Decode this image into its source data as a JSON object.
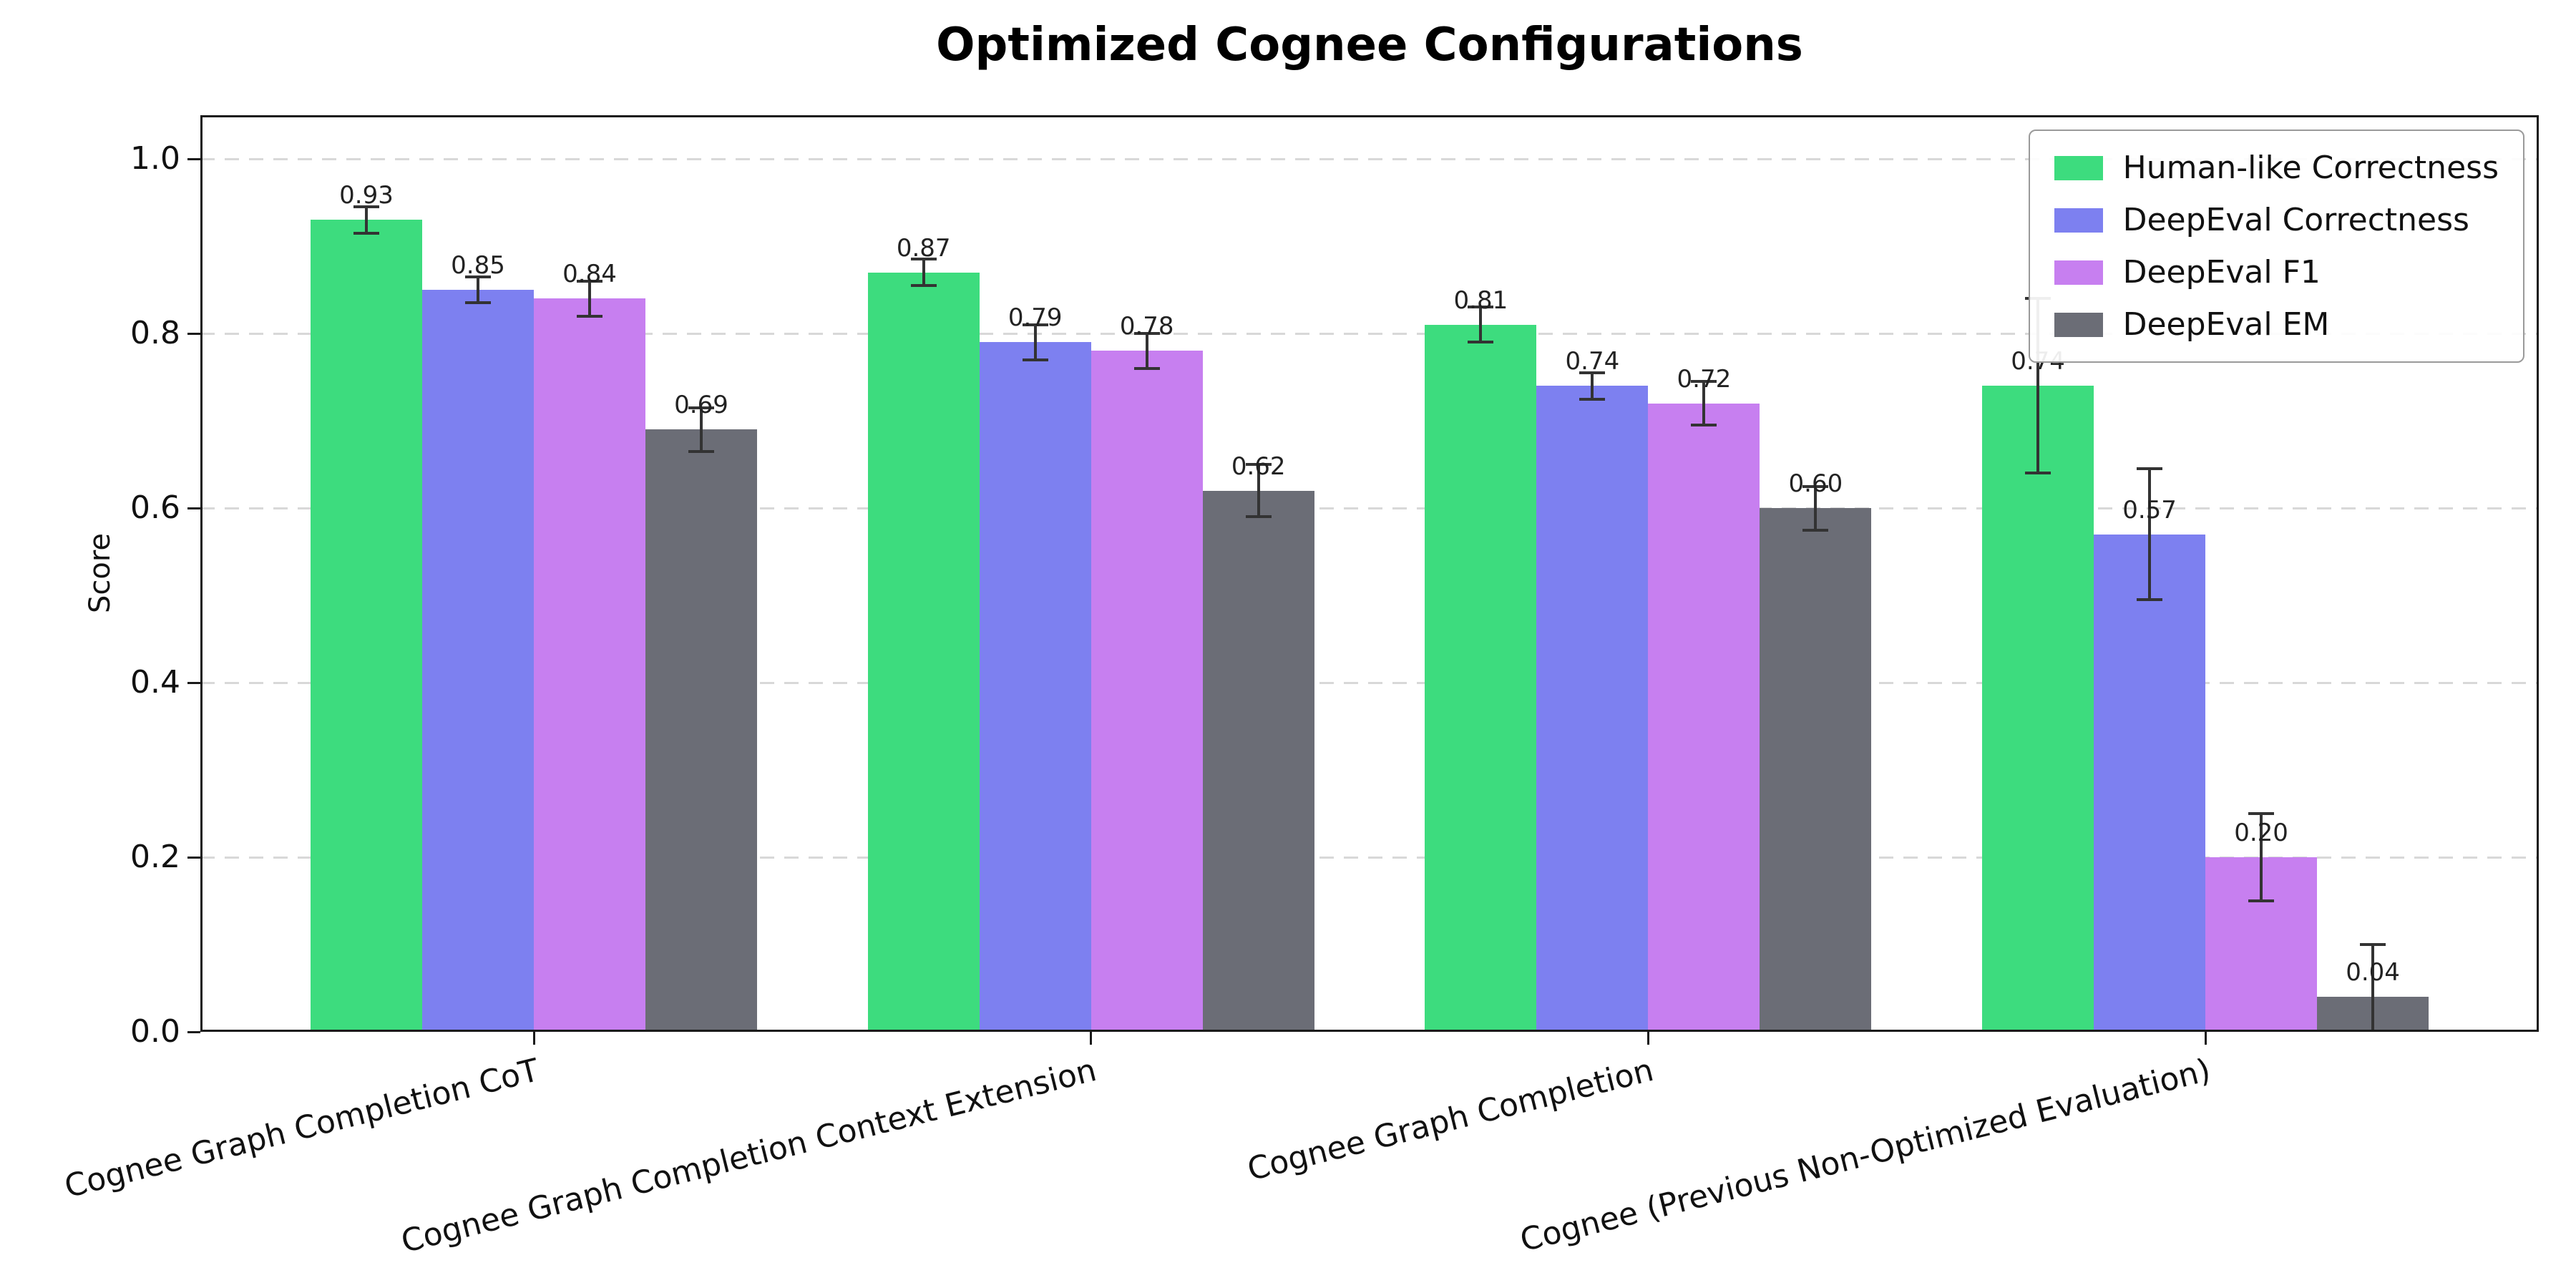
{
  "chart_data": {
    "type": "bar",
    "title": "Optimized Cognee Configurations",
    "ylabel": "Score",
    "xlabel": "",
    "ylim": [
      0,
      1.05
    ],
    "yticks": [
      0,
      0.2,
      0.4,
      0.6,
      0.8,
      1.0
    ],
    "grid": "horizontal-dashed",
    "grid_color": "#d8d8d8",
    "error_bar_color": "#333333",
    "legend_position": "upper-right",
    "bar_label_decimals": 2,
    "categories": [
      "Cognee Graph Completion CoT",
      "Cognee Graph Completion Context Extension",
      "Cognee Graph Completion",
      "Cognee (Previous Non-Optimized Evaluation)"
    ],
    "series": [
      {
        "name": "Human-like Correctness",
        "color": "#3ddc7e",
        "values": [
          0.93,
          0.87,
          0.81,
          0.74
        ],
        "errors": [
          0.015,
          0.015,
          0.02,
          0.1
        ]
      },
      {
        "name": "DeepEval Correctness",
        "color": "#7d80f0",
        "values": [
          0.85,
          0.79,
          0.74,
          0.57
        ],
        "errors": [
          0.015,
          0.02,
          0.015,
          0.075
        ]
      },
      {
        "name": "DeepEval F1",
        "color": "#c77ff0",
        "values": [
          0.84,
          0.78,
          0.72,
          0.2
        ],
        "errors": [
          0.02,
          0.02,
          0.025,
          0.05
        ]
      },
      {
        "name": "DeepEval EM",
        "color": "#6b6d76",
        "values": [
          0.69,
          0.62,
          0.6,
          0.04
        ],
        "errors": [
          0.025,
          0.03,
          0.025,
          0.06
        ]
      }
    ]
  }
}
